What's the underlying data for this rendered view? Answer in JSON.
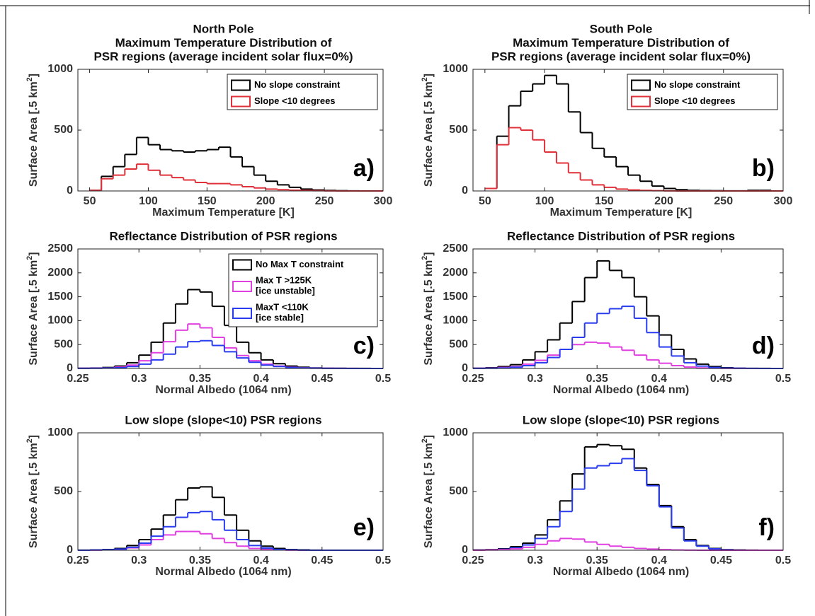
{
  "chart_data": [
    {
      "type": "histogram",
      "title": [
        "North Pole",
        "Maximum Temperature Distribution of",
        "PSR regions (average incident solar flux=0%)"
      ],
      "xlabel": "Maximum Temperature [K]",
      "ylabel": [
        "Surface Area [.5 km",
        "2",
        "]"
      ],
      "annotation": "a)",
      "xlim": [
        40,
        300
      ],
      "xticks": [
        50,
        100,
        150,
        200,
        250,
        300
      ],
      "ylim": [
        0,
        1000
      ],
      "yticks": [
        0,
        500,
        1000
      ],
      "legend": "upper right",
      "bins": [
        50,
        60,
        70,
        80,
        90,
        100,
        110,
        120,
        130,
        140,
        150,
        160,
        170,
        180,
        190,
        200,
        210,
        220,
        230,
        240,
        250,
        260,
        270,
        280,
        290,
        300
      ],
      "series": [
        {
          "name": "No slope constraint",
          "color": "#000000",
          "values": [
            5,
            120,
            200,
            300,
            440,
            380,
            340,
            330,
            320,
            330,
            340,
            360,
            280,
            200,
            130,
            80,
            50,
            30,
            15,
            8,
            4,
            2,
            1,
            0,
            0
          ]
        },
        {
          "name": "Slope <10 degrees",
          "color": "#e0303a",
          "values": [
            5,
            100,
            130,
            180,
            220,
            170,
            130,
            110,
            90,
            70,
            60,
            60,
            50,
            35,
            25,
            15,
            10,
            6,
            4,
            2,
            1,
            0,
            0,
            0,
            0
          ]
        }
      ]
    },
    {
      "type": "histogram",
      "title": [
        "South Pole",
        "Maximum Temperature Distribution of",
        "PSR regions (average incident solar flux=0%)"
      ],
      "xlabel": "Maximum Temperature [K]",
      "ylabel": [
        "Surface Area [.5 km",
        "2",
        "]"
      ],
      "annotation": "b)",
      "xlim": [
        40,
        300
      ],
      "xticks": [
        50,
        100,
        150,
        200,
        250,
        300
      ],
      "ylim": [
        0,
        1000
      ],
      "yticks": [
        0,
        500,
        1000
      ],
      "legend": "upper right",
      "bins": [
        50,
        60,
        70,
        80,
        90,
        100,
        110,
        120,
        130,
        140,
        150,
        160,
        170,
        180,
        190,
        200,
        210,
        220,
        230,
        240,
        250,
        260,
        270,
        280,
        290,
        300
      ],
      "series": [
        {
          "name": "No slope constraint",
          "color": "#000000",
          "values": [
            20,
            450,
            700,
            820,
            880,
            950,
            880,
            650,
            480,
            350,
            280,
            200,
            130,
            80,
            40,
            20,
            10,
            5,
            3,
            2,
            1,
            1,
            5,
            5,
            0
          ]
        },
        {
          "name": "Slope <10 degrees",
          "color": "#e0303a",
          "values": [
            20,
            380,
            520,
            500,
            420,
            320,
            230,
            150,
            90,
            50,
            30,
            15,
            8,
            4,
            2,
            1,
            0,
            0,
            0,
            0,
            0,
            0,
            0,
            0,
            0
          ]
        }
      ]
    },
    {
      "type": "histogram",
      "title": [
        "Reflectance Distribution of PSR regions"
      ],
      "xlabel": "Normal Albedo (1064 nm)",
      "ylabel": [
        "Surface Area [.5 km",
        "2",
        "]"
      ],
      "annotation": "c)",
      "xlim": [
        0.25,
        0.5
      ],
      "xticks": [
        0.25,
        0.3,
        0.35,
        0.4,
        0.45,
        0.5
      ],
      "ylim": [
        0,
        2500
      ],
      "yticks": [
        0,
        500,
        1000,
        1500,
        2000,
        2500
      ],
      "legend": "upper right",
      "bins": [
        0.25,
        0.26,
        0.27,
        0.28,
        0.29,
        0.3,
        0.31,
        0.32,
        0.33,
        0.34,
        0.35,
        0.36,
        0.37,
        0.38,
        0.39,
        0.4,
        0.41,
        0.42,
        0.43,
        0.44,
        0.45,
        0.46,
        0.47,
        0.48,
        0.49,
        0.5
      ],
      "series": [
        {
          "name": "No Max T constraint",
          "color": "#000000",
          "values": [
            5,
            10,
            20,
            50,
            120,
            280,
            550,
            950,
            1350,
            1650,
            1600,
            1300,
            900,
            550,
            330,
            180,
            100,
            50,
            25,
            12,
            6,
            3,
            2,
            1,
            0
          ]
        },
        {
          "name": "Max T >125K\n[ice unstable]",
          "color": "#e040e0",
          "values": [
            3,
            5,
            10,
            30,
            70,
            160,
            330,
            560,
            800,
            930,
            850,
            650,
            430,
            270,
            160,
            90,
            50,
            25,
            12,
            6,
            3,
            2,
            1,
            0,
            0
          ]
        },
        {
          "name": "MaxT <110K\n[ice stable]",
          "color": "#2a3cf0",
          "values": [
            2,
            4,
            8,
            15,
            40,
            90,
            180,
            300,
            450,
            560,
            580,
            480,
            350,
            220,
            130,
            70,
            40,
            20,
            10,
            5,
            2,
            1,
            0,
            0,
            0
          ]
        }
      ]
    },
    {
      "type": "histogram",
      "title": [
        "Reflectance Distribution of PSR regions"
      ],
      "xlabel": "Normal Albedo (1064 nm)",
      "ylabel": [
        "Surface Area [.5 km",
        "2",
        "]"
      ],
      "annotation": "d)",
      "xlim": [
        0.25,
        0.5
      ],
      "xticks": [
        0.25,
        0.3,
        0.35,
        0.4,
        0.45,
        0.5
      ],
      "ylim": [
        0,
        2500
      ],
      "yticks": [
        0,
        500,
        1000,
        1500,
        2000,
        2500
      ],
      "bins": [
        0.25,
        0.26,
        0.27,
        0.28,
        0.29,
        0.3,
        0.31,
        0.32,
        0.33,
        0.34,
        0.35,
        0.36,
        0.37,
        0.38,
        0.39,
        0.4,
        0.41,
        0.42,
        0.43,
        0.44,
        0.45,
        0.46,
        0.47,
        0.48,
        0.49,
        0.5
      ],
      "series": [
        {
          "color": "#000000",
          "values": [
            5,
            15,
            40,
            80,
            180,
            350,
            600,
            950,
            1400,
            1900,
            2250,
            2050,
            1900,
            1500,
            1100,
            700,
            400,
            200,
            90,
            40,
            15,
            5,
            2,
            1,
            0
          ]
        },
        {
          "color": "#e040e0",
          "values": [
            3,
            8,
            20,
            40,
            90,
            170,
            280,
            400,
            500,
            550,
            530,
            450,
            380,
            280,
            180,
            110,
            60,
            30,
            12,
            5,
            2,
            1,
            0,
            0,
            0
          ]
        },
        {
          "color": "#2a3cf0",
          "values": [
            1,
            4,
            10,
            25,
            60,
            120,
            230,
            400,
            650,
            950,
            1150,
            1250,
            1300,
            1050,
            750,
            450,
            260,
            120,
            50,
            20,
            8,
            3,
            1,
            0,
            0
          ]
        }
      ]
    },
    {
      "type": "histogram",
      "title": [
        "Low slope (slope<10) PSR regions"
      ],
      "xlabel": "Normal Albedo (1064 nm)",
      "ylabel": [
        "Surface Area [.5 km",
        "2",
        "]"
      ],
      "annotation": "e)",
      "xlim": [
        0.25,
        0.5
      ],
      "xticks": [
        0.25,
        0.3,
        0.35,
        0.4,
        0.45,
        0.5
      ],
      "ylim": [
        0,
        1000
      ],
      "yticks": [
        0,
        500,
        1000
      ],
      "bins": [
        0.25,
        0.26,
        0.27,
        0.28,
        0.29,
        0.3,
        0.31,
        0.32,
        0.33,
        0.34,
        0.35,
        0.36,
        0.37,
        0.38,
        0.39,
        0.4,
        0.41,
        0.42,
        0.43,
        0.44,
        0.45,
        0.46,
        0.47,
        0.48,
        0.49,
        0.5
      ],
      "series": [
        {
          "color": "#000000",
          "values": [
            1,
            3,
            6,
            15,
            40,
            90,
            180,
            300,
            430,
            530,
            540,
            450,
            300,
            170,
            80,
            35,
            15,
            6,
            3,
            1,
            0,
            0,
            0,
            0,
            0
          ]
        },
        {
          "color": "#e040e0",
          "values": [
            0,
            1,
            3,
            8,
            20,
            45,
            90,
            130,
            160,
            160,
            140,
            100,
            65,
            35,
            15,
            7,
            3,
            1,
            0,
            0,
            0,
            0,
            0,
            0,
            0
          ]
        },
        {
          "color": "#2a3cf0",
          "values": [
            0,
            2,
            4,
            10,
            25,
            60,
            120,
            200,
            280,
            320,
            330,
            260,
            170,
            90,
            40,
            18,
            7,
            3,
            1,
            0,
            0,
            0,
            0,
            0,
            0
          ]
        }
      ]
    },
    {
      "type": "histogram",
      "title": [
        "Low slope (slope<10) PSR regions"
      ],
      "xlabel": "Normal Albedo (1064 nm)",
      "ylabel": [
        "Surface Area [.5 km",
        "2",
        "]"
      ],
      "annotation": "f)",
      "xlim": [
        0.25,
        0.5
      ],
      "xticks": [
        0.25,
        0.3,
        0.35,
        0.4,
        0.45,
        0.5
      ],
      "ylim": [
        0,
        1000
      ],
      "yticks": [
        0,
        500,
        1000
      ],
      "bins": [
        0.25,
        0.26,
        0.27,
        0.28,
        0.29,
        0.3,
        0.31,
        0.32,
        0.33,
        0.34,
        0.35,
        0.36,
        0.37,
        0.38,
        0.39,
        0.4,
        0.41,
        0.42,
        0.43,
        0.44,
        0.45,
        0.46,
        0.47,
        0.48,
        0.49,
        0.5
      ],
      "series": [
        {
          "color": "#000000",
          "values": [
            2,
            5,
            12,
            30,
            60,
            130,
            260,
            420,
            650,
            880,
            900,
            890,
            860,
            700,
            560,
            380,
            200,
            90,
            40,
            15,
            5,
            2,
            1,
            0,
            0
          ]
        },
        {
          "color": "#2a3cf0",
          "values": [
            1,
            3,
            8,
            20,
            45,
            100,
            200,
            330,
            520,
            700,
            720,
            740,
            780,
            680,
            550,
            370,
            190,
            80,
            35,
            12,
            4,
            1,
            0,
            0,
            0
          ]
        },
        {
          "color": "#e040e0",
          "values": [
            0,
            2,
            5,
            12,
            25,
            50,
            80,
            100,
            95,
            70,
            50,
            35,
            25,
            15,
            10,
            5,
            2,
            1,
            0,
            0,
            0,
            0,
            0,
            0,
            0
          ]
        }
      ]
    }
  ]
}
